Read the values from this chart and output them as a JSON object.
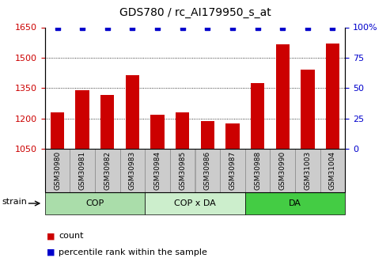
{
  "title": "GDS780 / rc_AI179950_s_at",
  "samples": [
    "GSM30980",
    "GSM30981",
    "GSM30982",
    "GSM30983",
    "GSM30984",
    "GSM30985",
    "GSM30986",
    "GSM30987",
    "GSM30988",
    "GSM30990",
    "GSM31003",
    "GSM31004"
  ],
  "counts": [
    1228,
    1340,
    1315,
    1415,
    1220,
    1228,
    1185,
    1175,
    1375,
    1565,
    1440,
    1570
  ],
  "percentiles": [
    100,
    100,
    100,
    100,
    100,
    100,
    100,
    100,
    100,
    100,
    100,
    100
  ],
  "ylim_left": [
    1050,
    1650
  ],
  "ylim_right": [
    0,
    100
  ],
  "yticks_left": [
    1050,
    1200,
    1350,
    1500,
    1650
  ],
  "yticks_right": [
    0,
    25,
    50,
    75,
    100
  ],
  "ytick_right_labels": [
    "0",
    "25",
    "50",
    "75",
    "100%"
  ],
  "groups": [
    {
      "label": "COP",
      "start": 0,
      "end": 4,
      "color": "#aaddaa"
    },
    {
      "label": "COP x DA",
      "start": 4,
      "end": 8,
      "color": "#cceecc"
    },
    {
      "label": "DA",
      "start": 8,
      "end": 12,
      "color": "#44cc44"
    }
  ],
  "bar_color": "#cc0000",
  "dot_color": "#0000cc",
  "dot_size": 4,
  "bar_width": 0.55,
  "tick_label_color_left": "#cc0000",
  "tick_label_color_right": "#0000cc",
  "sample_box_color": "#cccccc",
  "sample_box_edge": "#888888",
  "grid_color": "black",
  "grid_lw": 0.6,
  "grid_ls": "dotted",
  "legend_count_color": "#cc0000",
  "legend_pct_color": "#0000cc",
  "title_fontsize": 10,
  "ytick_fontsize": 8,
  "sample_fontsize": 6.5,
  "group_fontsize": 8,
  "legend_fontsize": 8,
  "strain_fontsize": 8
}
